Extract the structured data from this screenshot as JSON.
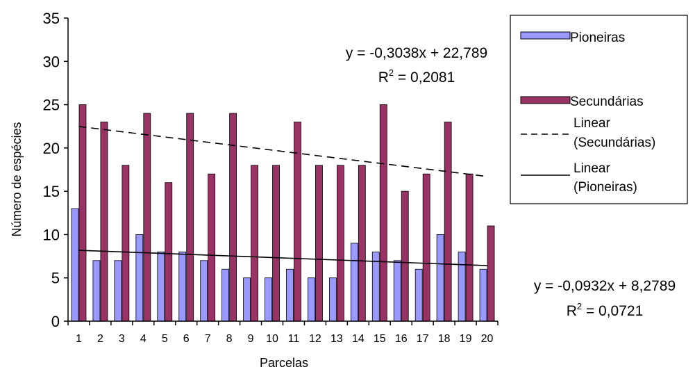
{
  "chart_data": {
    "type": "bar",
    "xlabel": "Parcelas",
    "ylabel": "Número de espécies",
    "ylim": [
      0,
      35
    ],
    "yticks": [
      0,
      5,
      10,
      15,
      20,
      25,
      30,
      35
    ],
    "categories": [
      "1",
      "2",
      "3",
      "4",
      "5",
      "6",
      "7",
      "8",
      "9",
      "10",
      "11",
      "12",
      "13",
      "14",
      "15",
      "16",
      "17",
      "18",
      "19",
      "20"
    ],
    "series": [
      {
        "name": "Pioneiras",
        "color": "#9999ff",
        "values": [
          13,
          7,
          7,
          10,
          8,
          8,
          7,
          6,
          5,
          5,
          6,
          5,
          5,
          9,
          8,
          7,
          6,
          10,
          8,
          6
        ]
      },
      {
        "name": "Secundárias",
        "color": "#993366",
        "values": [
          25,
          23,
          18,
          24,
          16,
          24,
          17,
          24,
          18,
          18,
          23,
          18,
          18,
          18,
          25,
          15,
          17,
          23,
          17,
          11
        ]
      }
    ],
    "trendlines": [
      {
        "name": "Linear (Secundárias)",
        "legend_lines": [
          "Linear",
          "(Secundárias)"
        ],
        "style": "dashed",
        "slope": -0.3038,
        "intercept": 22.789,
        "equation": "y = -0,3038x + 22,789",
        "r2_label": "R",
        "r2_value": " = 0,2081"
      },
      {
        "name": "Linear (Pioneiras)",
        "legend_lines": [
          "Linear",
          "(Pioneiras)"
        ],
        "style": "solid",
        "slope": -0.0932,
        "intercept": 8.2789,
        "equation": "y = -0,0932x + 8,2789",
        "r2_label": "R",
        "r2_value": " = 0,0721"
      }
    ],
    "r2_superscript": "2",
    "grid": false,
    "legend_position": "right"
  }
}
